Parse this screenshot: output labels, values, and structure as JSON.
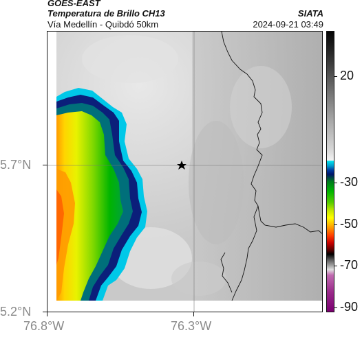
{
  "header": {
    "satellite": "GOES-EAST",
    "product": "Temperatura de Brillo CH13",
    "route": "Vía Medellín - Quibdó 50km",
    "source": "SIATA",
    "timestamp": "2024-09-21 03:49"
  },
  "map": {
    "lat_labels": [
      "5.7°N",
      "5.2°N"
    ],
    "lon_labels": [
      "76.8°W",
      "76.3°W"
    ],
    "marker_icon": "star-icon",
    "colors": {
      "cold_blue": "#0b1f7a",
      "cyan_edge": "#00c8e8",
      "green": "#1fc21f",
      "yellow": "#f2f200",
      "orange": "#ff9a00",
      "warm_gray": "#c4c4c4",
      "border_line": "#111111"
    }
  },
  "colorbar": {
    "labels": [
      "20",
      "-30",
      "-50",
      "-70",
      "-90"
    ],
    "units_note": ""
  }
}
